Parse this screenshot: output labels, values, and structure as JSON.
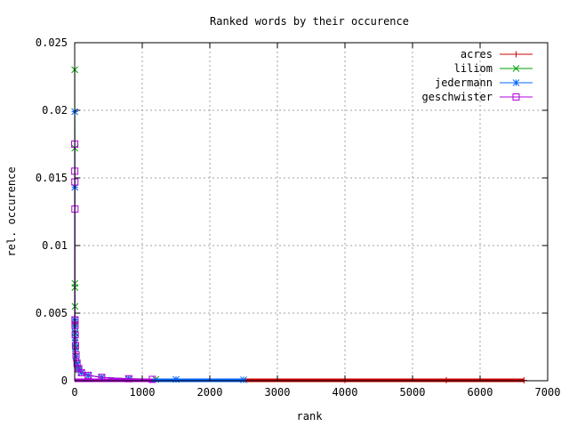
{
  "chart_data": {
    "type": "line",
    "title": "Ranked words by their occurence",
    "xlabel": "rank",
    "ylabel": "rel. occurence",
    "xlim": [
      0,
      7000
    ],
    "ylim": [
      0,
      0.025
    ],
    "x_ticks": [
      0,
      1000,
      2000,
      3000,
      4000,
      5000,
      6000,
      7000
    ],
    "x_tick_labels": [
      "0",
      "1000",
      "2000",
      "3000",
      "4000",
      "5000",
      "6000",
      "7000"
    ],
    "y_ticks": [
      0,
      0.005,
      0.01,
      0.015,
      0.02,
      0.025
    ],
    "y_tick_labels": [
      "0",
      "0.005",
      "0.01",
      "0.015",
      "0.02",
      "0.025"
    ],
    "grid": true,
    "legend_position": "top-right",
    "series": [
      {
        "name": "acres",
        "color": "#cc0000",
        "marker": "plus",
        "x": [
          1,
          2,
          3,
          5,
          8,
          12,
          20,
          35,
          60,
          100,
          200,
          400,
          800,
          1500,
          2500,
          4000,
          5500,
          6650
        ],
        "y": [
          0.0045,
          0.0042,
          0.0036,
          0.003,
          0.0025,
          0.002,
          0.0015,
          0.0011,
          0.0008,
          0.0006,
          0.0004,
          0.00025,
          0.00015,
          0.0001,
          7e-05,
          5e-05,
          4e-05,
          3e-05
        ]
      },
      {
        "name": "liliom",
        "color": "#00a000",
        "marker": "cross",
        "x": [
          1,
          2,
          3,
          4,
          5,
          6,
          8,
          12,
          20,
          35,
          60,
          100,
          200,
          400,
          800,
          1200
        ],
        "y": [
          0.023,
          0.0172,
          0.0072,
          0.0069,
          0.0055,
          0.0042,
          0.0035,
          0.0025,
          0.0018,
          0.0012,
          0.0008,
          0.0006,
          0.0004,
          0.00025,
          0.00015,
          0.0001
        ]
      },
      {
        "name": "jedermann",
        "color": "#0064ff",
        "marker": "star",
        "x": [
          1,
          2,
          3,
          4,
          5,
          6,
          8,
          12,
          20,
          35,
          60,
          100,
          200,
          400,
          800,
          1500,
          2500
        ],
        "y": [
          0.0199,
          0.0143,
          0.0045,
          0.004,
          0.0036,
          0.0032,
          0.0028,
          0.0024,
          0.0018,
          0.0013,
          0.0009,
          0.0006,
          0.0004,
          0.00025,
          0.00015,
          0.0001,
          7e-05
        ]
      },
      {
        "name": "geschwister",
        "color": "#b400dc",
        "marker": "square",
        "x": [
          1,
          2,
          3,
          4,
          5,
          6,
          8,
          12,
          20,
          35,
          60,
          100,
          200,
          400,
          800,
          1150
        ],
        "y": [
          0.0175,
          0.0155,
          0.0147,
          0.0127,
          0.0045,
          0.0041,
          0.0034,
          0.0026,
          0.0019,
          0.0013,
          0.0009,
          0.0006,
          0.0004,
          0.00025,
          0.00015,
          0.0001
        ]
      }
    ]
  }
}
